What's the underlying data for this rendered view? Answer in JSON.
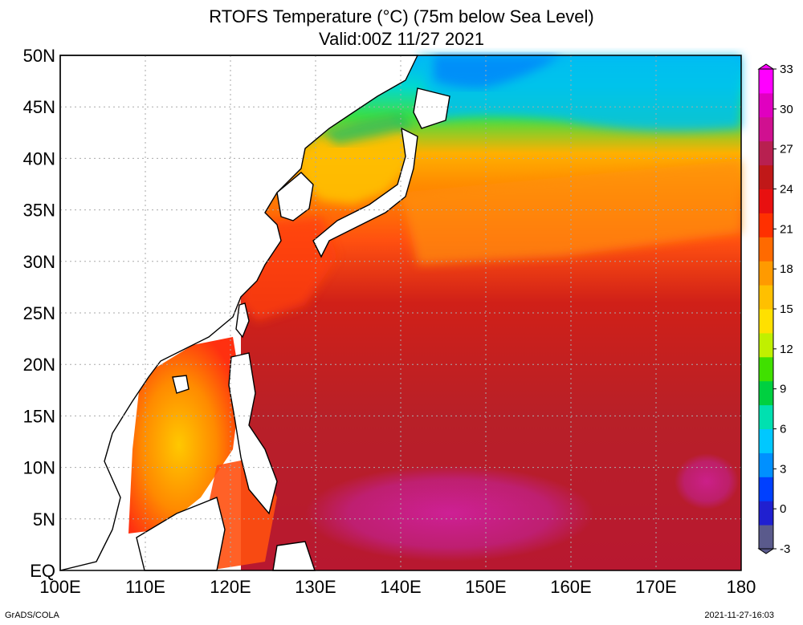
{
  "title": "RTOFS Temperature (°C) (75m below Sea Level)",
  "subtitle": "Valid:00Z 11/27 2021",
  "lat_labels": [
    "50N",
    "45N",
    "40N",
    "35N",
    "30N",
    "25N",
    "20N",
    "15N",
    "10N",
    "5N",
    "EQ"
  ],
  "lon_labels": [
    "100E",
    "110E",
    "120E",
    "130E",
    "140E",
    "150E",
    "160E",
    "170E",
    "180"
  ],
  "colorbar": {
    "labels": [
      "33",
      "30",
      "27",
      "24",
      "21",
      "18",
      "15",
      "12",
      "9",
      "6",
      "3",
      "0",
      "-3"
    ],
    "colors": [
      "#5a5a8c",
      "#2020d0",
      "#0040ff",
      "#0090ff",
      "#00c8ff",
      "#00e0b0",
      "#00d040",
      "#40e000",
      "#c0f000",
      "#ffe000",
      "#ffc000",
      "#ff9a00",
      "#ff6a00",
      "#ff3000",
      "#e81010",
      "#c01818",
      "#b82050",
      "#d01090",
      "#e000c0",
      "#ff00ff"
    ]
  },
  "footer_left": "GrADS/COLA",
  "footer_right": "2021-11-27-16:03"
}
